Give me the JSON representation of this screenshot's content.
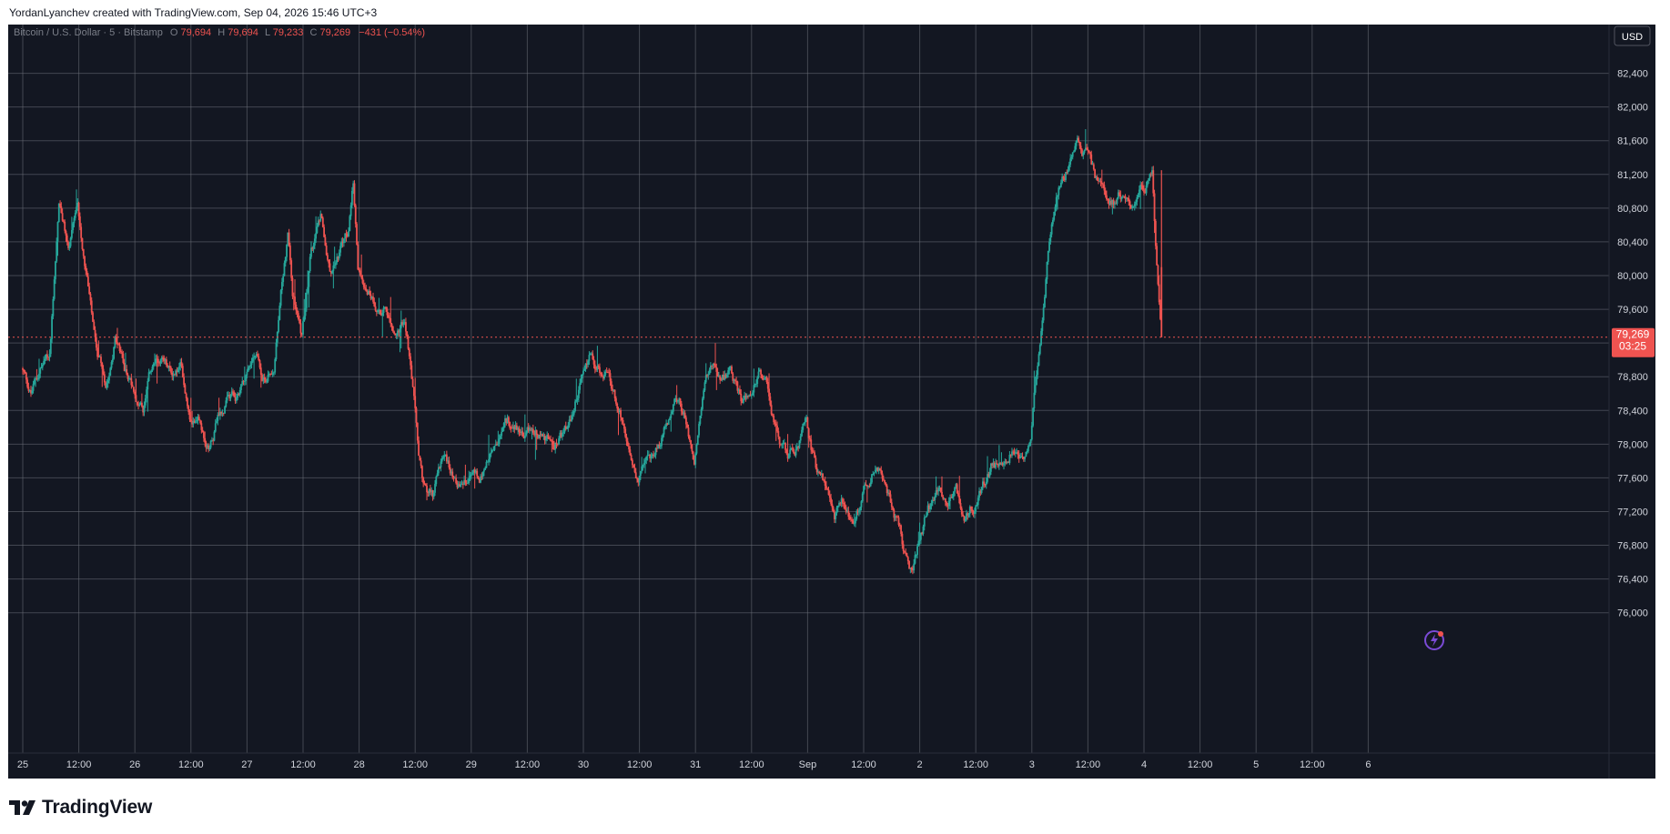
{
  "header": {
    "caption": "YordanLyanchev created with TradingView.com, Sep 04, 2026 15:46 UTC+3"
  },
  "legend": {
    "symbol": "Bitcoin / U.S. Dollar · 5 · Bitstamp",
    "o_label": "O",
    "o_value": "79,694",
    "h_label": "H",
    "h_value": "79,694",
    "l_label": "L",
    "l_value": "79,233",
    "c_label": "C",
    "c_value": "79,269",
    "change": "−431 (−0.54%)"
  },
  "currency_button": "USD",
  "price_label": {
    "price": "79,269",
    "countdown": "03:25"
  },
  "footer": {
    "brand": "TradingView"
  },
  "colors": {
    "background": "#131722",
    "grid": "#6b6f78",
    "up": "#26a69a",
    "down": "#ef5350",
    "text": "#d1d4dc"
  },
  "chart_data": {
    "type": "candlestick",
    "symbol": "Bitcoin / U.S. Dollar",
    "interval": "5",
    "exchange": "Bitstamp",
    "last_price": 79269,
    "y_ticks": [
      76000,
      76400,
      76800,
      77200,
      77600,
      78000,
      78400,
      78800,
      79200,
      79600,
      80000,
      80400,
      80800,
      81200,
      81600,
      82000,
      82400
    ],
    "y_tick_labels": [
      "76,000",
      "76,400",
      "76,800",
      "77,200",
      "77,600",
      "78,000",
      "78,400",
      "78,800",
      "79,200",
      "79,600",
      "80,000",
      "80,400",
      "80,800",
      "81,200",
      "81,600",
      "82,000",
      "82,400"
    ],
    "ylim": [
      75700,
      82900
    ],
    "x_tick_labels": [
      "25",
      "12:00",
      "26",
      "12:00",
      "27",
      "12:00",
      "28",
      "12:00",
      "29",
      "12:00",
      "30",
      "12:00",
      "31",
      "12:00",
      "Sep",
      "12:00",
      "2",
      "12:00",
      "3",
      "12:00",
      "4",
      "12:00",
      "5",
      "12:00",
      "6"
    ],
    "xlim_hours": [
      -3,
      291
    ],
    "price_path": [
      [
        0,
        78900
      ],
      [
        2,
        78600
      ],
      [
        4,
        78900
      ],
      [
        6,
        79000
      ],
      [
        7,
        80000
      ],
      [
        8,
        80900
      ],
      [
        10,
        80300
      ],
      [
        12,
        80700
      ],
      [
        14,
        80000
      ],
      [
        15,
        79500
      ],
      [
        16,
        79000
      ],
      [
        18,
        78700
      ],
      [
        20,
        79300
      ],
      [
        22,
        78900
      ],
      [
        24,
        78700
      ],
      [
        26,
        78400
      ],
      [
        28,
        78900
      ],
      [
        30,
        79000
      ],
      [
        32,
        78800
      ],
      [
        34,
        78900
      ],
      [
        36,
        78400
      ],
      [
        38,
        78400
      ],
      [
        40,
        78000
      ],
      [
        42,
        78300
      ],
      [
        44,
        78500
      ],
      [
        46,
        78500
      ],
      [
        48,
        78900
      ],
      [
        50,
        79100
      ],
      [
        52,
        78800
      ],
      [
        54,
        78900
      ],
      [
        56,
        80000
      ],
      [
        57,
        80500
      ],
      [
        58,
        79800
      ],
      [
        60,
        79300
      ],
      [
        62,
        80300
      ],
      [
        64,
        80600
      ],
      [
        66,
        80000
      ],
      [
        68,
        80300
      ],
      [
        70,
        80500
      ],
      [
        71,
        81000
      ],
      [
        72,
        80000
      ],
      [
        74,
        79900
      ],
      [
        76,
        79700
      ],
      [
        78,
        79600
      ],
      [
        80,
        79200
      ],
      [
        82,
        79500
      ],
      [
        83,
        79000
      ],
      [
        84,
        78500
      ],
      [
        85,
        77800
      ],
      [
        86,
        77500
      ],
      [
        88,
        77400
      ],
      [
        90,
        77800
      ],
      [
        92,
        77700
      ],
      [
        94,
        77500
      ],
      [
        96,
        77600
      ],
      [
        98,
        77600
      ],
      [
        100,
        77800
      ],
      [
        102,
        78000
      ],
      [
        104,
        78200
      ],
      [
        106,
        78200
      ],
      [
        108,
        78100
      ],
      [
        110,
        78200
      ],
      [
        112,
        78100
      ],
      [
        114,
        78000
      ],
      [
        116,
        78100
      ],
      [
        118,
        78300
      ],
      [
        120,
        78800
      ],
      [
        122,
        79100
      ],
      [
        124,
        78900
      ],
      [
        126,
        78700
      ],
      [
        128,
        78400
      ],
      [
        130,
        77800
      ],
      [
        132,
        77600
      ],
      [
        134,
        77700
      ],
      [
        136,
        77900
      ],
      [
        138,
        78200
      ],
      [
        140,
        78600
      ],
      [
        142,
        78300
      ],
      [
        144,
        77800
      ],
      [
        146,
        78600
      ],
      [
        148,
        79000
      ],
      [
        150,
        78900
      ],
      [
        152,
        78800
      ],
      [
        154,
        78500
      ],
      [
        156,
        78700
      ],
      [
        158,
        78900
      ],
      [
        160,
        78600
      ],
      [
        162,
        78000
      ],
      [
        164,
        77800
      ],
      [
        166,
        77900
      ],
      [
        168,
        78200
      ],
      [
        170,
        77700
      ],
      [
        172,
        77500
      ],
      [
        174,
        77200
      ],
      [
        176,
        77300
      ],
      [
        178,
        77000
      ],
      [
        180,
        77400
      ],
      [
        182,
        77700
      ],
      [
        184,
        77600
      ],
      [
        186,
        77300
      ],
      [
        188,
        77000
      ],
      [
        189,
        76700
      ],
      [
        190,
        76500
      ],
      [
        192,
        76800
      ],
      [
        194,
        77200
      ],
      [
        196,
        77400
      ],
      [
        198,
        77300
      ],
      [
        200,
        77400
      ],
      [
        202,
        77200
      ],
      [
        204,
        77300
      ],
      [
        206,
        77500
      ],
      [
        208,
        77800
      ],
      [
        210,
        77700
      ],
      [
        212,
        78000
      ],
      [
        214,
        77800
      ],
      [
        216,
        78100
      ],
      [
        218,
        79300
      ],
      [
        220,
        80500
      ],
      [
        222,
        81100
      ],
      [
        224,
        81300
      ],
      [
        226,
        81500
      ],
      [
        228,
        81400
      ],
      [
        230,
        81100
      ],
      [
        232,
        81000
      ],
      [
        234,
        80900
      ],
      [
        236,
        81000
      ],
      [
        238,
        80800
      ],
      [
        240,
        81000
      ],
      [
        242,
        81200
      ],
      [
        243,
        80100
      ],
      [
        244,
        79269
      ]
    ]
  }
}
